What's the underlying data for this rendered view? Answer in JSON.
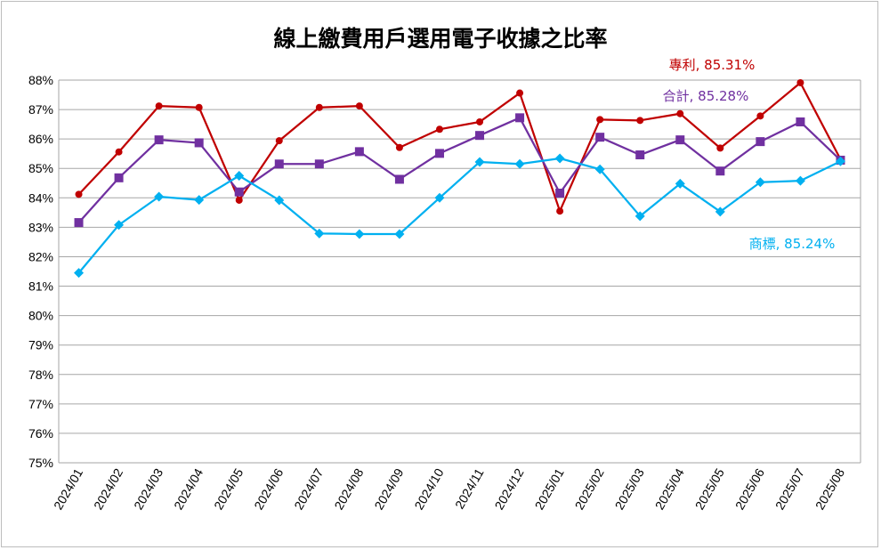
{
  "chart_data": {
    "type": "line",
    "title": "線上繳費用戶選用電子收據之比率",
    "xlabel": "",
    "ylabel": "",
    "categories": [
      "2024/01",
      "2024/02",
      "2024/03",
      "2024/04",
      "2024/05",
      "2024/06",
      "2024/07",
      "2024/08",
      "2024/09",
      "2024/10",
      "2024/11",
      "2024/12",
      "2025/01",
      "2025/02",
      "2025/03",
      "2025/04",
      "2025/05",
      "2025/06",
      "2025/07",
      "2025/08"
    ],
    "ylim": [
      75,
      88
    ],
    "yticks": [
      "75%",
      "76%",
      "77%",
      "78%",
      "79%",
      "80%",
      "81%",
      "82%",
      "83%",
      "84%",
      "85%",
      "86%",
      "87%",
      "88%"
    ],
    "grid": true,
    "series": [
      {
        "name": "專利",
        "label": "專利, 85.31%",
        "color": "#c00000",
        "marker": "circle",
        "values": [
          84.12,
          85.56,
          87.12,
          87.07,
          83.92,
          85.94,
          87.07,
          87.12,
          85.71,
          86.33,
          86.58,
          87.56,
          83.55,
          86.66,
          86.63,
          86.86,
          85.69,
          86.78,
          87.91,
          85.31
        ]
      },
      {
        "name": "合計",
        "label": "合計, 85.28%",
        "color": "#7030a0",
        "marker": "square",
        "values": [
          83.16,
          84.68,
          85.97,
          85.87,
          84.2,
          85.15,
          85.15,
          85.57,
          84.63,
          85.51,
          86.12,
          86.72,
          84.16,
          86.06,
          85.46,
          85.97,
          84.91,
          85.91,
          86.58,
          85.28
        ]
      },
      {
        "name": "商標",
        "label": "商標, 85.24%",
        "color": "#00b0f0",
        "marker": "diamond",
        "values": [
          81.45,
          83.08,
          84.04,
          83.93,
          84.75,
          83.92,
          82.79,
          82.77,
          82.77,
          84.0,
          85.22,
          85.15,
          85.34,
          84.97,
          83.38,
          84.48,
          83.53,
          84.53,
          84.58,
          85.24
        ]
      }
    ]
  }
}
